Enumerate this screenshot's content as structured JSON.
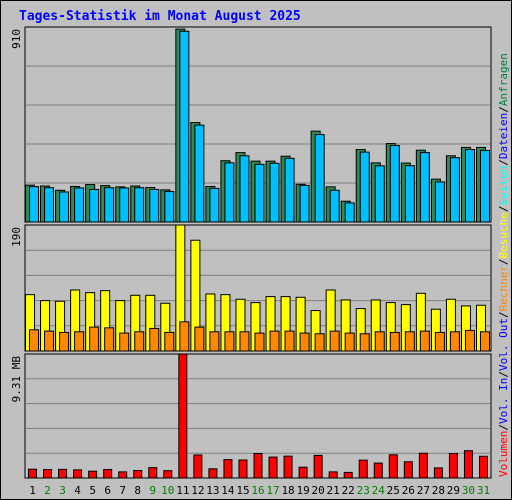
{
  "chart_data": {
    "type": "bar",
    "title": "Tages-Statistik im Monat August 2025",
    "categories": [
      "1",
      "2",
      "3",
      "4",
      "5",
      "6",
      "7",
      "8",
      "9",
      "10",
      "11",
      "12",
      "13",
      "14",
      "15",
      "16",
      "17",
      "18",
      "19",
      "20",
      "21",
      "22",
      "23",
      "24",
      "25",
      "26",
      "27",
      "28",
      "29",
      "30",
      "31"
    ],
    "weekend_days": [
      "2",
      "3",
      "9",
      "10",
      "16",
      "17",
      "23",
      "24",
      "30",
      "31"
    ],
    "panels": [
      {
        "id": "hits",
        "max_label": "910",
        "ylim": [
          0,
          910
        ],
        "series": [
          {
            "name": "Anfragen",
            "color": "#2e8b57",
            "values": [
              172,
              168,
              148,
              166,
              175,
              170,
              164,
              168,
              161,
              150,
              900,
              464,
              166,
              286,
              324,
              284,
              284,
              307,
              176,
              424,
              164,
              97,
              338,
              276,
              366,
              275,
              335,
              200,
              309,
              348,
              348
            ]
          },
          {
            "name": "Dateien",
            "color": "#00bfff",
            "values": [
              165,
              160,
              140,
              159,
              152,
              160,
              159,
              160,
              152,
              142,
              890,
              452,
              157,
              276,
              309,
              269,
              274,
              297,
              171,
              408,
              148,
              89,
              326,
              262,
              357,
              263,
              324,
              187,
              300,
              338,
              334
            ]
          }
        ],
        "label_only_series": [
          {
            "name": "Seiten",
            "color": "#00ffff"
          }
        ]
      },
      {
        "id": "visits",
        "max_label": "190",
        "ylim": [
          0,
          190
        ],
        "series": [
          {
            "name": "Besuche",
            "color": "#ffff00",
            "values": [
              85,
              76,
              75,
              92,
              88,
              91,
              76,
              84,
              84,
              72,
              190,
              167,
              86,
              85,
              78,
              73,
              82,
              82,
              81,
              61,
              92,
              77,
              64,
              77,
              73,
              70,
              87,
              63,
              78,
              68,
              69
            ]
          },
          {
            "name": "Rechner",
            "color": "#ff8800",
            "values": [
              32,
              30,
              28,
              29,
              36,
              35,
              27,
              29,
              34,
              28,
              44,
              36,
              29,
              29,
              29,
              27,
              30,
              30,
              27,
              26,
              30,
              27,
              26,
              29,
              28,
              29,
              30,
              28,
              29,
              31,
              29
            ]
          }
        ]
      },
      {
        "id": "volume",
        "max_label": "9.31 MB",
        "ylim": [
          0,
          9.31
        ],
        "series": [
          {
            "name": "Volumen",
            "color": "#ff0000",
            "values": [
              0.66,
              0.63,
              0.65,
              0.61,
              0.51,
              0.64,
              0.46,
              0.56,
              0.78,
              0.55,
              9.31,
              1.73,
              0.69,
              1.38,
              1.35,
              1.84,
              1.57,
              1.64,
              0.81,
              1.7,
              0.46,
              0.42,
              1.34,
              1.12,
              1.74,
              1.22,
              1.86,
              0.76,
              1.84,
              2.05,
              1.63
            ]
          }
        ],
        "label_only_series": [
          {
            "name": "Vol. In",
            "color": "#0000ff"
          },
          {
            "name": "Vol. Out",
            "color": "#0000ff"
          }
        ]
      }
    ],
    "side_legend": [
      {
        "text": "Volumen",
        "color": "#ff0000"
      },
      {
        "text": "Vol. In",
        "color": "#0000ff"
      },
      {
        "text": "Vol. Out",
        "color": "#0000ff"
      },
      {
        "text": "Rechner",
        "color": "#ff8800"
      },
      {
        "text": "Besuche",
        "color": "#ffff00"
      },
      {
        "text": "Seiten",
        "color": "#00ffff"
      },
      {
        "text": "Dateien",
        "color": "#0000ff"
      },
      {
        "text": "Anfragen",
        "color": "#008040"
      }
    ],
    "separator_color": "#000000",
    "weekday_label_color": "#000000",
    "weekend_label_color": "#008000",
    "grid": true
  }
}
